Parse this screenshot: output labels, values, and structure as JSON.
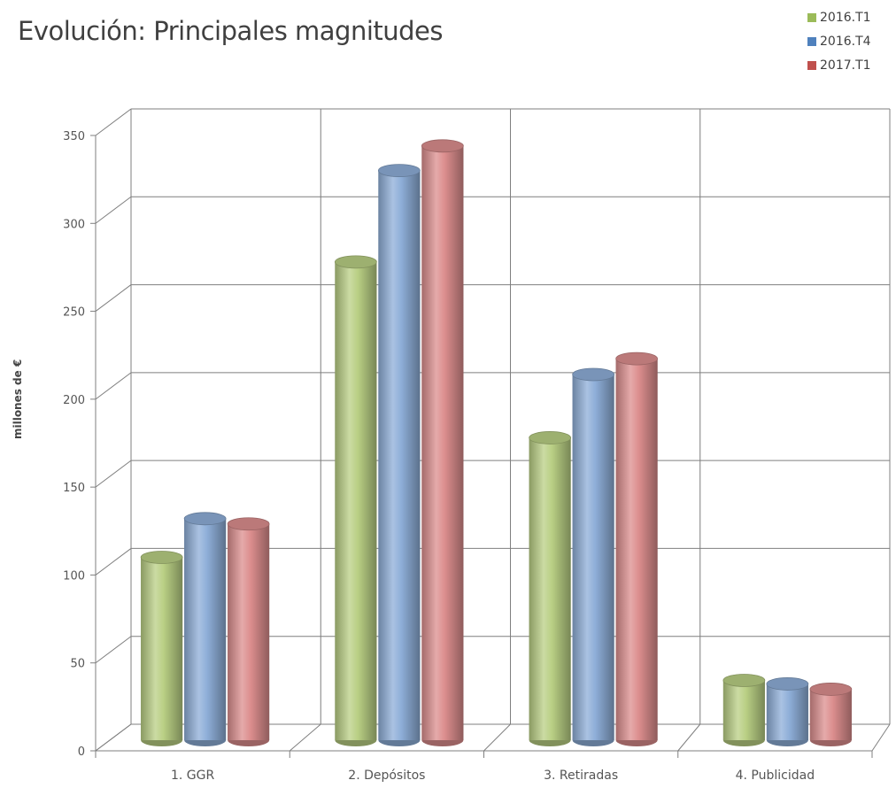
{
  "chart_data": {
    "type": "bar",
    "title": "Evolución: Principales magnitudes",
    "ylabel": "millones de €",
    "xlabel": "",
    "ylim": [
      0,
      350
    ],
    "yticks": [
      0,
      50,
      100,
      150,
      200,
      250,
      300,
      350
    ],
    "categories": [
      "1. GGR",
      "2. Depósitos",
      "3. Retiradas",
      "4. Publicidad"
    ],
    "series": [
      {
        "name": "2016.T1",
        "color": "#b9cf84",
        "values": [
          104,
          272,
          172,
          34
        ]
      },
      {
        "name": "2016.T4",
        "color": "#8eaed8",
        "values": [
          126,
          324,
          208,
          32
        ]
      },
      {
        "name": "2017.T1",
        "color": "#dc8e8e",
        "values": [
          123,
          338,
          217,
          29
        ]
      }
    ],
    "grid": true,
    "legend_position": "top-right",
    "style": "3d-cylinder"
  }
}
